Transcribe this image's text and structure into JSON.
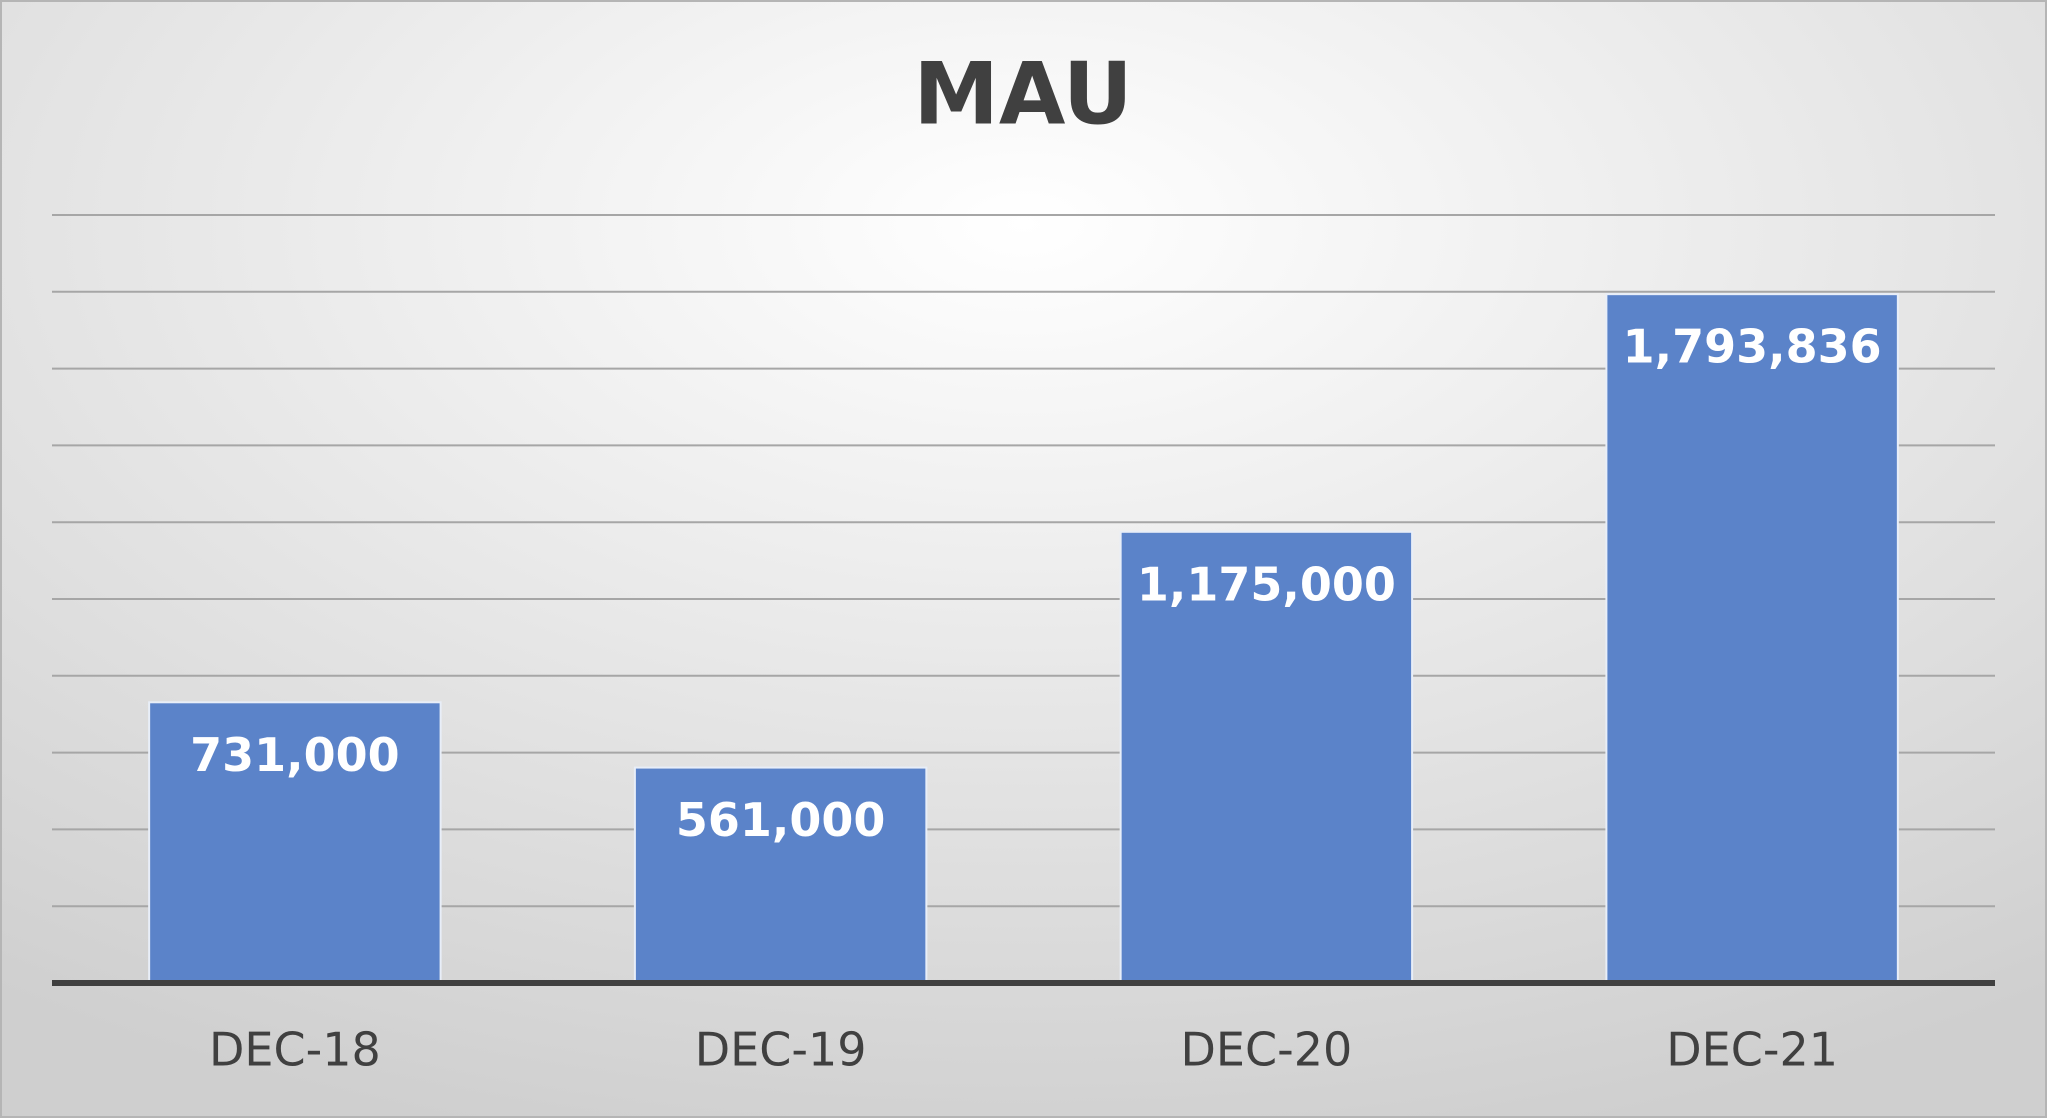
{
  "chart_data": {
    "type": "bar",
    "title": "MAU",
    "categories": [
      "DEC-18",
      "DEC-19",
      "DEC-20",
      "DEC-21"
    ],
    "values": [
      731000,
      561000,
      1175000,
      1793836
    ],
    "value_labels": [
      "731,000",
      "561,000",
      "1,175,000",
      "1,793,836"
    ],
    "color": "#5b83c9",
    "ylim": [
      0,
      2000000
    ],
    "yticks": [
      0,
      200000,
      400000,
      600000,
      800000,
      1000000,
      1200000,
      1400000,
      1600000,
      1800000,
      2000000
    ],
    "grid": true
  }
}
